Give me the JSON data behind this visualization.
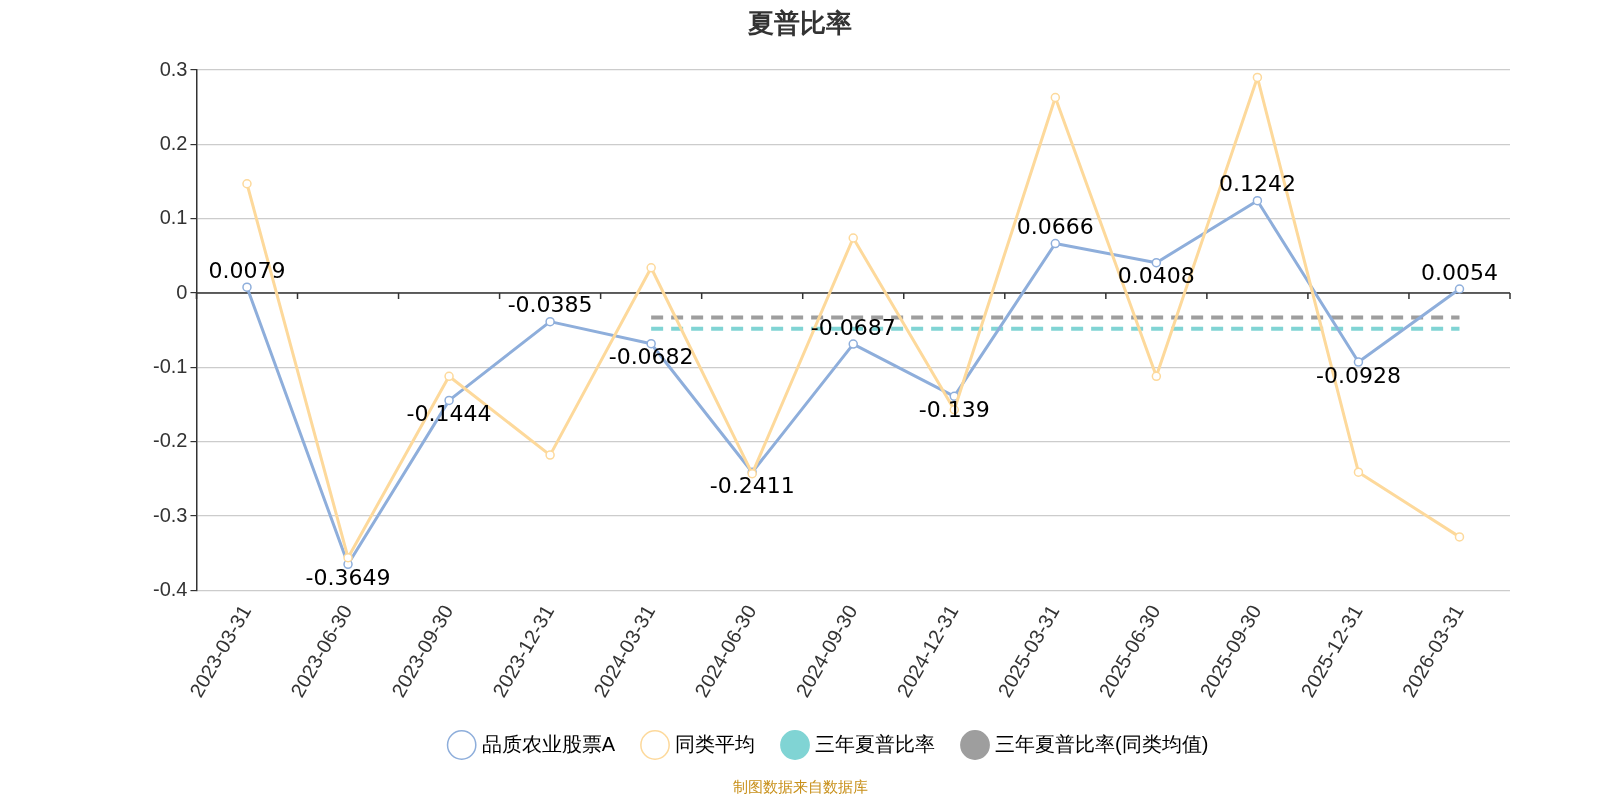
{
  "chart_data": {
    "type": "line",
    "title": "夏普比率",
    "categories": [
      "2023-03-31",
      "2023-06-30",
      "2023-09-30",
      "2023-12-31",
      "2024-03-31",
      "2024-06-30",
      "2024-09-30",
      "2024-12-31",
      "2025-03-31",
      "2025-06-30",
      "2025-09-30",
      "2025-12-31",
      "2026-03-31"
    ],
    "series": [
      {
        "name": "品质农业股票A",
        "color": "#8eaedb",
        "marker": "circle",
        "values": [
          0.0079,
          -0.3649,
          -0.1444,
          -0.0385,
          -0.0682,
          -0.2411,
          -0.0687,
          -0.139,
          0.0666,
          0.0408,
          0.1242,
          -0.0928,
          0.0054
        ],
        "value_labels": [
          "0.0079",
          "-0.3649",
          "-0.1444",
          "-0.0385",
          "-0.0682",
          "-0.2411",
          "-0.0687",
          "-0.139",
          "0.0666",
          "0.0408",
          "0.1242",
          "-0.0928",
          "0.0054"
        ]
      },
      {
        "name": "同类平均",
        "color": "#fdd99b",
        "marker": "circle",
        "values": [
          0.147,
          -0.356,
          -0.112,
          -0.218,
          0.034,
          -0.243,
          0.074,
          -0.157,
          0.263,
          -0.112,
          0.29,
          -0.241,
          -0.328
        ]
      },
      {
        "name": "三年夏普比率",
        "color": "#80d4d4",
        "marker": "none",
        "line_style": "dashed",
        "values": [
          null,
          null,
          null,
          null,
          -0.048,
          -0.048,
          -0.048,
          -0.048,
          -0.048,
          -0.048,
          -0.048,
          -0.048,
          -0.048
        ]
      },
      {
        "name": "三年夏普比率(同类均值)",
        "color": "#9e9e9e",
        "marker": "none",
        "line_style": "dashed",
        "values": [
          null,
          null,
          null,
          null,
          -0.033,
          -0.033,
          -0.033,
          -0.033,
          -0.033,
          -0.033,
          -0.033,
          -0.033,
          -0.033
        ]
      }
    ],
    "ylim": [
      -0.4,
      0.3
    ],
    "yticks": [
      -0.4,
      -0.3,
      -0.2,
      -0.1,
      0,
      0.1,
      0.2,
      0.3
    ],
    "grid": "y",
    "legend": "bottom",
    "annotations": [
      "制图数据来自数据库"
    ]
  }
}
